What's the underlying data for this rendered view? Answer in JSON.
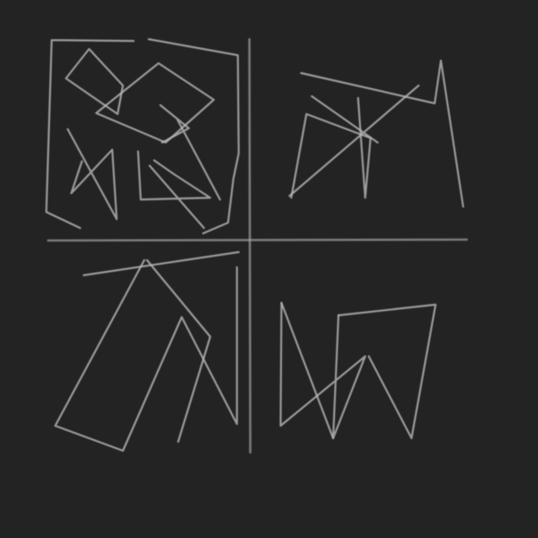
{
  "scene": {
    "description_label": "",
    "background_color": "#232323",
    "stroke_color": "#bdbdbd",
    "quadrant_names": [
      "top-left",
      "top-right",
      "bottom-left",
      "bottom-right"
    ]
  }
}
